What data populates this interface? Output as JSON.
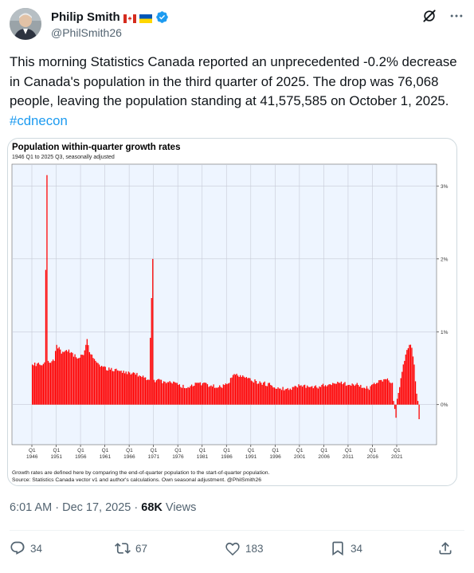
{
  "author": {
    "display_name": "Philip Smith",
    "handle": "@PhilSmith26",
    "flags": [
      "canada-flag",
      "ukraine-flag"
    ],
    "verified": true
  },
  "tweet": {
    "text": "This morning Statistics Canada reported an unprecedented -0.2% decrease in Canada's population in the third quarter of 2025. The drop was 76,068 people, leaving the population standing at 41,575,585 on October 1, 2025. ",
    "hashtag": "#cdnecon",
    "time": "6:01 AM",
    "separator": "·",
    "date": "Dec 17, 2025",
    "separator2": "·",
    "views_count": "68K",
    "views_label": "Views"
  },
  "actions": {
    "replies": "34",
    "reposts": "67",
    "likes": "183",
    "bookmarks": "34"
  },
  "colors": {
    "bar": "#ff0000",
    "plot_bg": "#eef5ff",
    "link": "#1d9bf0"
  },
  "chart_data": {
    "type": "bar",
    "title": "Population within-quarter growth rates",
    "subtitle": "1946 Q1 to 2025 Q3, seasonally adjusted",
    "footnote_1": "Growth rates are defined here by comparing the end-of-quarter population to the start-of-quarter population.",
    "footnote_2": "Source: Statistics Canada vector v1 and author's calculations. Own seasonal adjustment. @PhilSmith26",
    "y_ticks": [
      "0%",
      "1%",
      "2%",
      "3%"
    ],
    "y_tick_values": [
      0,
      1,
      2,
      3
    ],
    "ylim": [
      -0.55,
      3.3
    ],
    "x_tick_labels": [
      {
        "q": "Q1",
        "year": "1946"
      },
      {
        "q": "Q1",
        "year": "1951"
      },
      {
        "q": "Q1",
        "year": "1956"
      },
      {
        "q": "Q1",
        "year": "1961"
      },
      {
        "q": "Q1",
        "year": "1966"
      },
      {
        "q": "Q1",
        "year": "1971"
      },
      {
        "q": "Q1",
        "year": "1976"
      },
      {
        "q": "Q1",
        "year": "1981"
      },
      {
        "q": "Q1",
        "year": "1986"
      },
      {
        "q": "Q1",
        "year": "1991"
      },
      {
        "q": "Q1",
        "year": "1996"
      },
      {
        "q": "Q1",
        "year": "2001"
      },
      {
        "q": "Q1",
        "year": "2006"
      },
      {
        "q": "Q1",
        "year": "2011"
      },
      {
        "q": "Q1",
        "year": "2016"
      },
      {
        "q": "Q1",
        "year": "2021"
      }
    ],
    "x_start_year": 1946,
    "x_end": "2025 Q3",
    "grid": true,
    "anchor_values": [
      {
        "year": 1946.0,
        "value": 0.55
      },
      {
        "year": 1947.5,
        "value": 0.55
      },
      {
        "year": 1948.5,
        "value": 0.58
      },
      {
        "year": 1949.0,
        "value": 3.15
      },
      {
        "year": 1949.25,
        "value": 0.6
      },
      {
        "year": 1950.5,
        "value": 0.6
      },
      {
        "year": 1951.0,
        "value": 0.82
      },
      {
        "year": 1952.0,
        "value": 0.7
      },
      {
        "year": 1953.0,
        "value": 0.75
      },
      {
        "year": 1954.0,
        "value": 0.72
      },
      {
        "year": 1955.0,
        "value": 0.65
      },
      {
        "year": 1956.5,
        "value": 0.68
      },
      {
        "year": 1957.25,
        "value": 0.9
      },
      {
        "year": 1957.75,
        "value": 0.72
      },
      {
        "year": 1959.0,
        "value": 0.6
      },
      {
        "year": 1960.0,
        "value": 0.52
      },
      {
        "year": 1962.0,
        "value": 0.48
      },
      {
        "year": 1964.0,
        "value": 0.46
      },
      {
        "year": 1966.0,
        "value": 0.44
      },
      {
        "year": 1968.0,
        "value": 0.4
      },
      {
        "year": 1970.0,
        "value": 0.34
      },
      {
        "year": 1970.75,
        "value": 2.0
      },
      {
        "year": 1971.0,
        "value": 0.34
      },
      {
        "year": 1973.0,
        "value": 0.32
      },
      {
        "year": 1976.0,
        "value": 0.27
      },
      {
        "year": 1978.0,
        "value": 0.24
      },
      {
        "year": 1980.0,
        "value": 0.3
      },
      {
        "year": 1982.0,
        "value": 0.28
      },
      {
        "year": 1984.0,
        "value": 0.23
      },
      {
        "year": 1986.0,
        "value": 0.28
      },
      {
        "year": 1987.5,
        "value": 0.42
      },
      {
        "year": 1989.0,
        "value": 0.38
      },
      {
        "year": 1991.0,
        "value": 0.33
      },
      {
        "year": 1993.0,
        "value": 0.3
      },
      {
        "year": 1995.0,
        "value": 0.27
      },
      {
        "year": 1997.0,
        "value": 0.22
      },
      {
        "year": 1999.0,
        "value": 0.22
      },
      {
        "year": 2001.0,
        "value": 0.26
      },
      {
        "year": 2003.0,
        "value": 0.24
      },
      {
        "year": 2005.0,
        "value": 0.25
      },
      {
        "year": 2007.0,
        "value": 0.28
      },
      {
        "year": 2009.0,
        "value": 0.3
      },
      {
        "year": 2011.0,
        "value": 0.27
      },
      {
        "year": 2013.0,
        "value": 0.27
      },
      {
        "year": 2015.0,
        "value": 0.22
      },
      {
        "year": 2017.0,
        "value": 0.3
      },
      {
        "year": 2019.0,
        "value": 0.36
      },
      {
        "year": 2020.0,
        "value": 0.3
      },
      {
        "year": 2020.25,
        "value": 0.05
      },
      {
        "year": 2020.5,
        "value": -0.06
      },
      {
        "year": 2020.75,
        "value": -0.18
      },
      {
        "year": 2021.0,
        "value": 0.08
      },
      {
        "year": 2021.5,
        "value": 0.24
      },
      {
        "year": 2022.0,
        "value": 0.45
      },
      {
        "year": 2022.5,
        "value": 0.6
      },
      {
        "year": 2023.0,
        "value": 0.75
      },
      {
        "year": 2023.5,
        "value": 0.82
      },
      {
        "year": 2024.0,
        "value": 0.78
      },
      {
        "year": 2024.5,
        "value": 0.55
      },
      {
        "year": 2024.75,
        "value": 0.32
      },
      {
        "year": 2025.0,
        "value": 0.15
      },
      {
        "year": 2025.25,
        "value": 0.05
      },
      {
        "year": 2025.5,
        "value": -0.2
      }
    ]
  }
}
